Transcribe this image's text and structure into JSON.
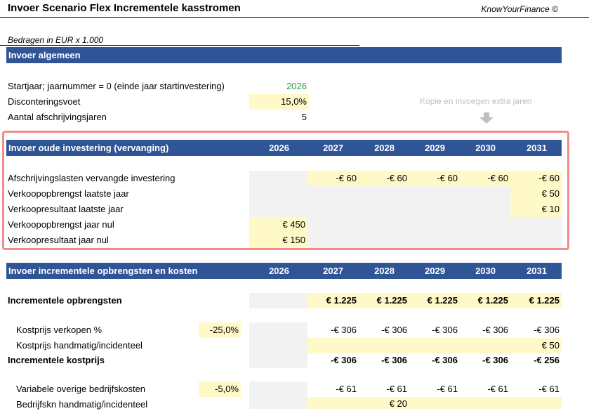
{
  "header": {
    "title": "Invoer Scenario Flex Incrementele kasstromen",
    "brand": "KnowYourFinance ©"
  },
  "note": "Bedragen in EUR x 1.000",
  "general": {
    "title": "Invoer algemeen",
    "startyear_label": "Startjaar; jaarnummer = 0 (einde jaar startinvestering)",
    "startyear_value": "2026",
    "discount_label": "Disconteringsvoet",
    "discount_value": "15,0%",
    "depr_label": "Aantal afschrijvingsjaren",
    "depr_value": "5",
    "copy_hint": "Kopie en invoegen extra jaren"
  },
  "old": {
    "title": "Invoer oude investering (vervanging)",
    "years": [
      "2026",
      "2027",
      "2028",
      "2029",
      "2030",
      "2031"
    ],
    "rows": [
      {
        "label": "Afschrijvingslasten vervangde investering",
        "values": [
          "",
          "-€ 60",
          "-€ 60",
          "-€ 60",
          "-€ 60",
          "-€ 60"
        ]
      },
      {
        "label": "Verkoopopbrengst laatste jaar",
        "values": [
          "",
          "",
          "",
          "",
          "",
          "€ 50"
        ]
      },
      {
        "label": "Verkoopresultaat laatste jaar",
        "values": [
          "",
          "",
          "",
          "",
          "",
          "€ 10"
        ]
      },
      {
        "label": "Verkoopopbrengst jaar nul",
        "values": [
          "€ 450",
          "",
          "",
          "",
          "",
          ""
        ]
      },
      {
        "label": "Verkoopresultaat jaar nul",
        "values": [
          "€ 150",
          "",
          "",
          "",
          "",
          ""
        ]
      }
    ]
  },
  "inc": {
    "title": "Invoer incrementele opbrengsten en kosten",
    "years": [
      "2026",
      "2027",
      "2028",
      "2029",
      "2030",
      "2031"
    ],
    "revenue": {
      "label": "Incrementele opbrengsten",
      "values": [
        "",
        "€ 1.225",
        "€ 1.225",
        "€ 1.225",
        "€ 1.225",
        "€ 1.225"
      ]
    },
    "cogs_pct": {
      "label": "Kostprijs verkopen %",
      "pct": "-25,0%",
      "values": [
        "",
        "-€ 306",
        "-€ 306",
        "-€ 306",
        "-€ 306",
        "-€ 306"
      ]
    },
    "cogs_manual": {
      "label": "Kostprijs handmatig/incidenteel",
      "values": [
        "",
        "",
        "",
        "",
        "",
        "€ 50"
      ]
    },
    "cogs_total": {
      "label": "Incrementele kostprijs",
      "values": [
        "",
        "-€ 306",
        "-€ 306",
        "-€ 306",
        "-€ 306",
        "-€ 256"
      ]
    },
    "var_costs": {
      "label": "Variabele overige bedrijfskosten",
      "pct": "-5,0%",
      "values": [
        "",
        "-€ 61",
        "-€ 61",
        "-€ 61",
        "-€ 61",
        "-€ 61"
      ]
    },
    "var_manual": {
      "label": "Bedrijfskn handmatig/incidenteel",
      "values": [
        "",
        "",
        "€ 20",
        "",
        "",
        ""
      ]
    }
  }
}
